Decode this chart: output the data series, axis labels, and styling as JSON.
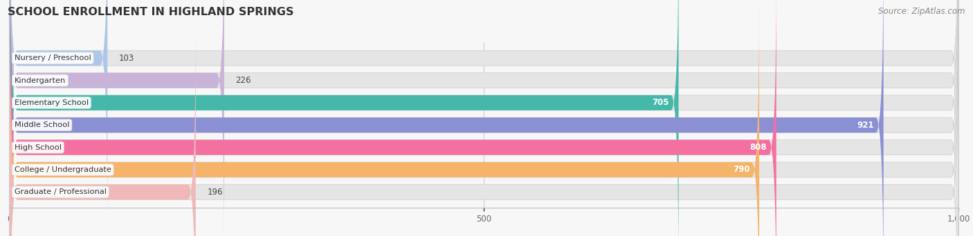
{
  "title": "SCHOOL ENROLLMENT IN HIGHLAND SPRINGS",
  "source": "Source: ZipAtlas.com",
  "categories": [
    "Nursery / Preschool",
    "Kindergarten",
    "Elementary School",
    "Middle School",
    "High School",
    "College / Undergraduate",
    "Graduate / Professional"
  ],
  "values": [
    103,
    226,
    705,
    921,
    808,
    790,
    196
  ],
  "bar_colors": [
    "#aec6e8",
    "#c9b3d8",
    "#45b8aa",
    "#8b8fd4",
    "#f470a0",
    "#f5b46a",
    "#f0b8b8"
  ],
  "bar_bg_color": "#e5e5e5",
  "xlim": [
    0,
    1000
  ],
  "xticks": [
    0,
    500,
    1000
  ],
  "xtick_labels": [
    "0",
    "500",
    "1,000"
  ],
  "background_color": "#f7f7f7",
  "title_fontsize": 11.5,
  "source_fontsize": 8.5,
  "bar_height": 0.68,
  "figsize": [
    14.06,
    3.42
  ],
  "dpi": 100
}
